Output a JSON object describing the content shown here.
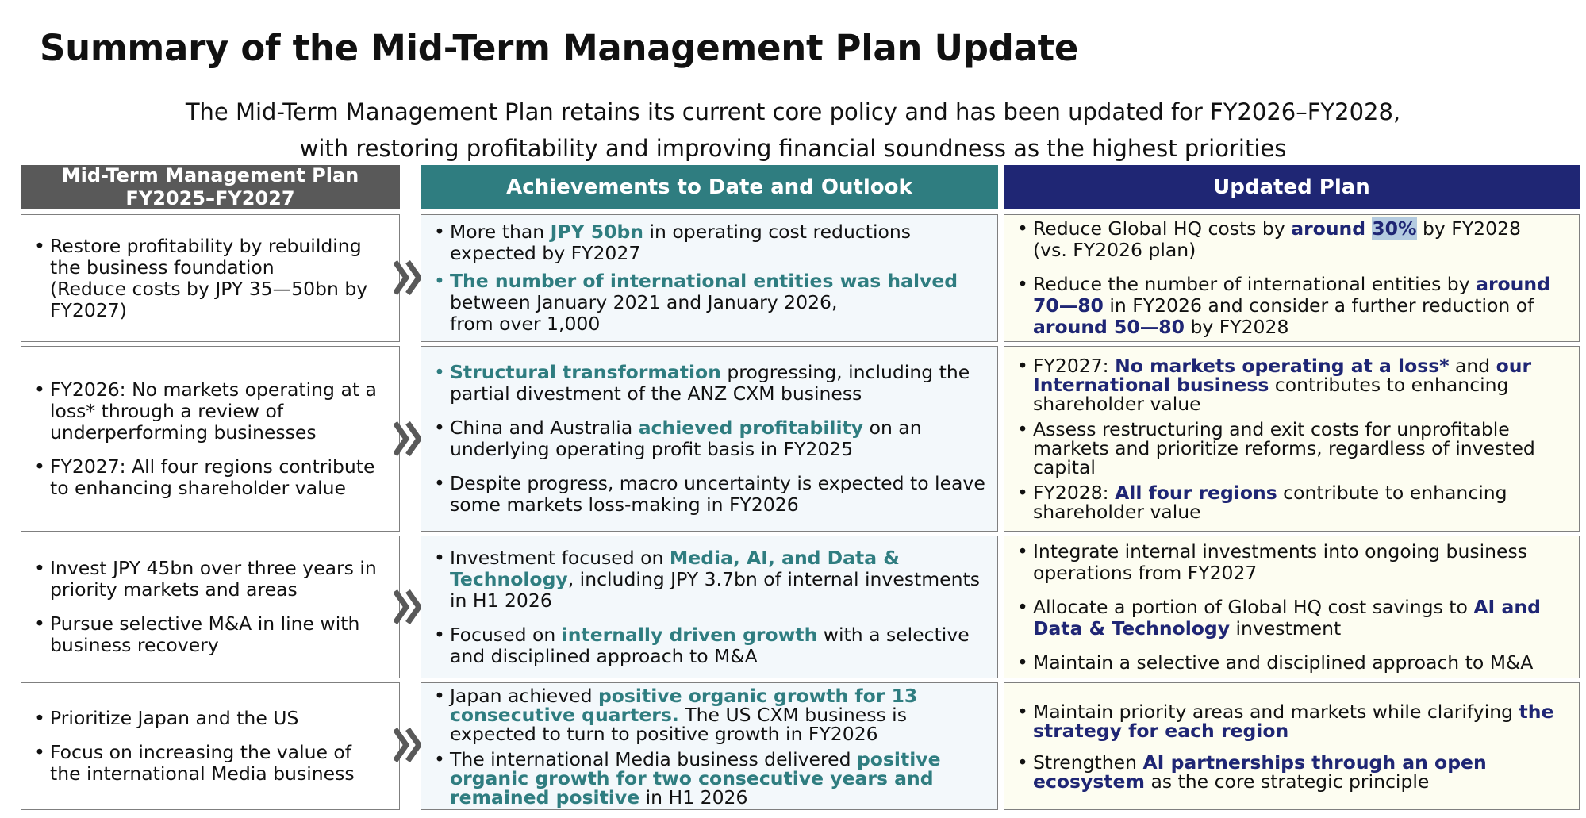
{
  "title": "Summary of the Mid-Term Management Plan Update",
  "subtitle": [
    "The Mid-Term Management Plan retains its current core policy and has been updated for FY2026–FY2028,",
    "with restoring profitability and improving financial soundness as the highest priorities"
  ],
  "headers": {
    "col1_line1": "Mid-Term Management Plan",
    "col1_line2": "FY2025–FY2027",
    "col2": "Achievements to Date and Outlook",
    "col3": "Updated Plan"
  },
  "colors": {
    "teal": "#2f7d80",
    "navy": "#1f2674",
    "gray_header": "#595959"
  },
  "icons": {
    "arrow": "double-chevron-right-icon"
  },
  "rows": [
    {
      "col1": [
        {
          "parts": [
            "Restore profitability by rebuilding the business foundation",
            "(Reduce costs by JPY 35—50bn by FY2027)"
          ]
        }
      ],
      "col2": [
        {
          "parts": [
            "More than ",
            "JPY 50bn",
            " in operating cost reductions expected by FY2027"
          ]
        },
        {
          "parts": [
            "The number of international entities was halved",
            "between January 2021 and January 2026,",
            "from over 1,000"
          ]
        }
      ],
      "col3": [
        {
          "parts": [
            "Reduce Global HQ costs by ",
            "around ",
            "30%",
            " by FY2028",
            "(vs. FY2026 plan)"
          ]
        },
        {
          "parts": [
            "Reduce the number of international entities by ",
            "around 70—80",
            " in FY2026 and consider a further reduction of ",
            "around 50—80",
            " by FY2028"
          ]
        }
      ]
    },
    {
      "col1": [
        {
          "parts": [
            "FY2026: No markets operating at a loss* through a review of underperforming businesses"
          ]
        },
        {
          "parts": [
            "FY2027: All four regions contribute to enhancing shareholder value"
          ]
        }
      ],
      "col2": [
        {
          "parts": [
            "Structural transformation",
            " progressing, including the partial divestment of the ANZ CXM business"
          ]
        },
        {
          "parts": [
            "China and Australia ",
            "achieved profitability",
            " on an underlying operating profit basis in FY2025"
          ]
        },
        {
          "parts": [
            "Despite progress, macro uncertainty is expected to leave some markets loss-making in FY2026"
          ]
        }
      ],
      "col3": [
        {
          "parts": [
            "FY2027: ",
            "No markets operating at a loss*",
            " and ",
            "our International business",
            " contributes to enhancing shareholder value"
          ]
        },
        {
          "parts": [
            "Assess restructuring and exit costs for unprofitable markets and prioritize reforms, regardless of invested capital"
          ]
        },
        {
          "parts": [
            "FY2028: ",
            "All four regions",
            " contribute to enhancing shareholder value"
          ]
        }
      ]
    },
    {
      "col1": [
        {
          "parts": [
            "Invest JPY 45bn over three years in priority markets and areas"
          ]
        },
        {
          "parts": [
            "Pursue selective M&A in line with business recovery"
          ]
        }
      ],
      "col2": [
        {
          "parts": [
            "Investment focused on ",
            "Media, AI, and Data & Technology",
            ", including JPY 3.7bn of internal investments in H1 2026"
          ]
        },
        {
          "parts": [
            "Focused on ",
            "internally driven growth",
            " with a selective and disciplined approach to M&A"
          ]
        }
      ],
      "col3": [
        {
          "parts": [
            "Integrate internal investments into ongoing business operations from FY2027"
          ]
        },
        {
          "parts": [
            "Allocate a portion of Global HQ cost savings to ",
            "AI and Data & Technology",
            " investment"
          ]
        },
        {
          "parts": [
            "Maintain a selective and disciplined approach to M&A"
          ]
        }
      ]
    },
    {
      "col1": [
        {
          "parts": [
            "Prioritize Japan and the US"
          ]
        },
        {
          "parts": [
            "Focus on increasing the value of the international Media business"
          ]
        }
      ],
      "col2": [
        {
          "parts": [
            "Japan achieved ",
            "positive organic growth for 13 consecutive quarters.",
            " The US CXM business is expected to turn to positive growth in FY2026"
          ]
        },
        {
          "parts": [
            "The international Media business delivered ",
            "positive organic growth for two consecutive years and remained positive",
            " in H1 2026"
          ]
        }
      ],
      "col3": [
        {
          "parts": [
            "Maintain priority areas and markets while clarifying ",
            "the strategy for each region"
          ]
        },
        {
          "parts": [
            "Strengthen ",
            "AI partnerships through an open ecosystem",
            " as the core strategic principle"
          ]
        }
      ]
    }
  ]
}
